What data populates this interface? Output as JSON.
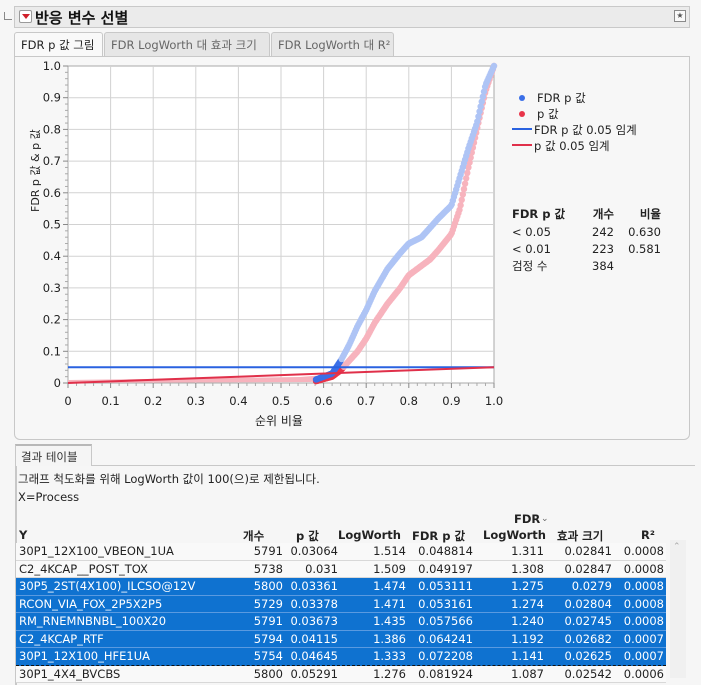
{
  "outline": {
    "title": "반응 변수 선별",
    "menu_icon": "red-triangle-menu-icon",
    "corner_icon": "star-window-icon"
  },
  "tabs": [
    {
      "label": "FDR p 값 그림",
      "active": true
    },
    {
      "label": "FDR LogWorth 대 효과 크기",
      "active": false
    },
    {
      "label": "FDR LogWorth 대 R²",
      "active": false
    }
  ],
  "plot": {
    "ylabel": "FDR p 값 & p 값",
    "xlabel": "순위 비율",
    "xticks": [
      "0",
      "0.1",
      "0.2",
      "0.3",
      "0.4",
      "0.5",
      "0.6",
      "0.7",
      "0.8",
      "0.9",
      "1.0"
    ],
    "yticks": [
      "0",
      "0.1",
      "0.2",
      "0.3",
      "0.4",
      "0.5",
      "0.6",
      "0.7",
      "0.8",
      "0.9",
      "1.0"
    ],
    "colors": {
      "fdr_point": "#3b6fe8",
      "fdr_point_light": "#aec4f5",
      "p_point": "#e8354a",
      "p_point_light": "#f7b3bd",
      "fdr_line": "#2a62e0",
      "p_line": "#e0304a"
    }
  },
  "legend": [
    {
      "type": "dot",
      "label": "FDR p 값",
      "color": "#3b6fe8"
    },
    {
      "type": "dot",
      "label": "p 값",
      "color": "#e8354a"
    },
    {
      "type": "line",
      "label": "FDR p 값 0.05 임계",
      "color": "#2a62e0"
    },
    {
      "type": "line",
      "label": "p 값 0.05 임계",
      "color": "#e0304a"
    }
  ],
  "summary": {
    "headers": [
      "FDR p 값",
      "개수",
      "비율"
    ],
    "rows": [
      [
        "< 0.05",
        "242",
        "0.630"
      ],
      [
        "< 0.01",
        "223",
        "0.581"
      ],
      [
        "검정 수",
        "384",
        ""
      ]
    ]
  },
  "chart_data": {
    "type": "scatter",
    "title": "FDR p 값 그림",
    "xlabel": "순위 비율",
    "ylabel": "FDR p 값 & p 값",
    "xlim": [
      0,
      1
    ],
    "ylim": [
      0,
      1
    ],
    "grid": true,
    "legend_position": "right",
    "series": [
      {
        "name": "FDR p 값",
        "x": [
          0.0,
          0.3,
          0.5,
          0.58,
          0.62,
          0.63,
          0.64,
          0.66,
          0.68,
          0.7,
          0.72,
          0.75,
          0.78,
          0.8,
          0.83,
          0.85,
          0.87,
          0.9,
          0.92,
          0.94,
          0.96,
          0.98,
          1.0
        ],
        "y": [
          0.0,
          0.0,
          0.0,
          0.01,
          0.03,
          0.05,
          0.07,
          0.12,
          0.18,
          0.23,
          0.29,
          0.36,
          0.41,
          0.44,
          0.46,
          0.49,
          0.52,
          0.56,
          0.65,
          0.74,
          0.82,
          0.94,
          1.0
        ]
      },
      {
        "name": "p 값",
        "x": [
          0.0,
          0.3,
          0.5,
          0.58,
          0.62,
          0.64,
          0.66,
          0.68,
          0.7,
          0.72,
          0.75,
          0.78,
          0.8,
          0.83,
          0.85,
          0.87,
          0.9,
          0.92,
          0.94,
          0.96,
          0.98,
          1.0
        ],
        "y": [
          0.0,
          0.0,
          0.0,
          0.005,
          0.02,
          0.04,
          0.07,
          0.1,
          0.14,
          0.19,
          0.25,
          0.3,
          0.34,
          0.37,
          0.39,
          0.42,
          0.47,
          0.55,
          0.68,
          0.8,
          0.92,
          1.0
        ]
      },
      {
        "name": "FDR p 값 0.05 임계",
        "x": [
          0,
          1
        ],
        "y": [
          0.05,
          0.05
        ]
      },
      {
        "name": "p 값 0.05 임계",
        "x": [
          0,
          1
        ],
        "y": [
          0.0,
          0.05
        ]
      }
    ]
  },
  "results": {
    "tab_label": "결과 테이블",
    "note": "그래프 척도화를 위해 LogWorth 값이 100(으)로 제한됩니다.",
    "x_label": "X=Process",
    "columns": [
      "Y",
      "개수",
      "p 값",
      "LogWorth",
      "FDR p 값",
      "FDR LogWorth",
      "효과 크기",
      "R²"
    ],
    "fdr_logworth_line1": "FDR",
    "fdr_logworth_line2": "LogWorth",
    "sort_indicator": "chevron-down-icon",
    "rows": [
      {
        "y": "30P1_12X100_VBEON_1UA",
        "n": "5791",
        "p": "0.03064",
        "lw": "1.514",
        "fdrp": "0.048814",
        "fdrlw": "1.311",
        "eff": "0.02841",
        "r2": "0.0008",
        "selected": false
      },
      {
        "y": "C2_4KCAP__POST_TOX",
        "n": "5738",
        "p": "0.031",
        "lw": "1.509",
        "fdrp": "0.049197",
        "fdrlw": "1.308",
        "eff": "0.02847",
        "r2": "0.0008",
        "selected": false
      },
      {
        "y": "30P5_2ST(4X100)_ILCSO@12V",
        "n": "5800",
        "p": "0.03361",
        "lw": "1.474",
        "fdrp": "0.053111",
        "fdrlw": "1.275",
        "eff": "0.0279",
        "r2": "0.0008",
        "selected": true
      },
      {
        "y": "RCON_VIA_FOX_2P5X2P5",
        "n": "5729",
        "p": "0.03378",
        "lw": "1.471",
        "fdrp": "0.053161",
        "fdrlw": "1.274",
        "eff": "0.02804",
        "r2": "0.0008",
        "selected": true
      },
      {
        "y": "RM_RNEMNBNBL_100X20",
        "n": "5791",
        "p": "0.03673",
        "lw": "1.435",
        "fdrp": "0.057566",
        "fdrlw": "1.240",
        "eff": "0.02745",
        "r2": "0.0008",
        "selected": true
      },
      {
        "y": "C2_4KCAP_RTF",
        "n": "5794",
        "p": "0.04115",
        "lw": "1.386",
        "fdrp": "0.064241",
        "fdrlw": "1.192",
        "eff": "0.02682",
        "r2": "0.0007",
        "selected": true
      },
      {
        "y": "30P1_12X100_HFE1UA",
        "n": "5754",
        "p": "0.04645",
        "lw": "1.333",
        "fdrp": "0.072208",
        "fdrlw": "1.141",
        "eff": "0.02625",
        "r2": "0.0007",
        "selected": true
      },
      {
        "y": "30P1_4X4_BVCBS",
        "n": "5800",
        "p": "0.05291",
        "lw": "1.276",
        "fdrp": "0.081924",
        "fdrlw": "1.087",
        "eff": "0.02542",
        "r2": "0.0006",
        "selected": false
      }
    ]
  }
}
